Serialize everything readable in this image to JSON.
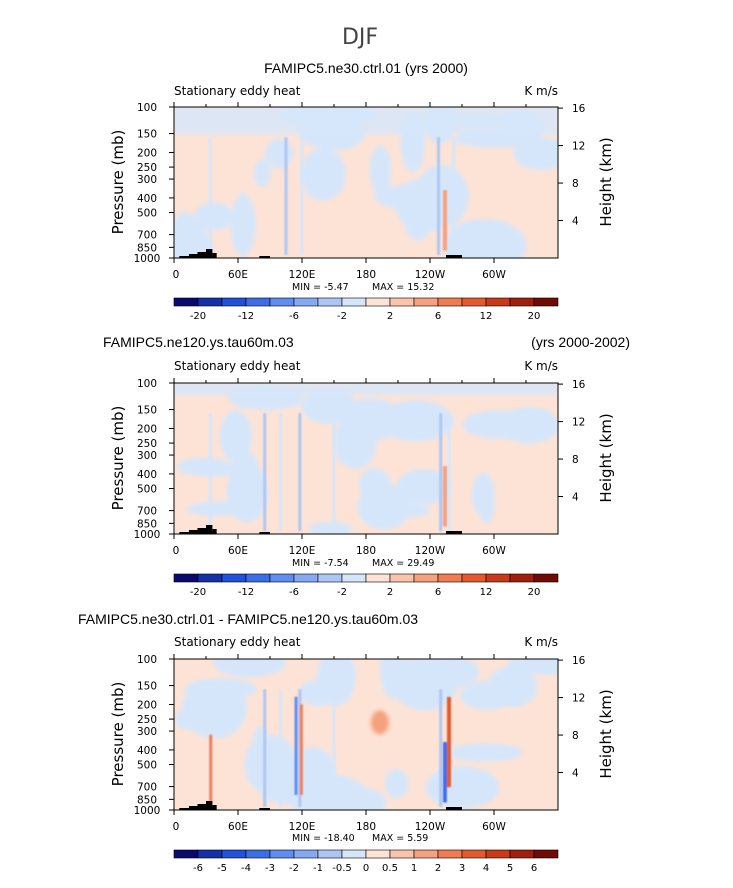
{
  "figure": {
    "title": "DJF"
  },
  "chart_data": [
    {
      "type": "heatmap",
      "title": "FAMIPC5.ne30.ctrl.01 (yrs 2000)",
      "title_right": "",
      "left_label": "Stationary eddy heat",
      "units": "K m/s",
      "xlabel": "",
      "ylabel": "Pressure (mb)",
      "ylabel_right": "Height (km)",
      "x_ticks": [
        "0",
        "60E",
        "120E",
        "180",
        "120W",
        "60W"
      ],
      "x_tick_values": [
        0,
        60,
        120,
        180,
        240,
        300
      ],
      "xlim": [
        0,
        360
      ],
      "y_ticks": [
        "100",
        "150",
        "200",
        "250",
        "300",
        "400",
        "500",
        "700",
        "850",
        "1000"
      ],
      "y_tick_values": [
        100,
        150,
        200,
        250,
        300,
        400,
        500,
        700,
        850,
        1000
      ],
      "ylim": [
        1000,
        100
      ],
      "y_scale": "log",
      "y_right_ticks": [
        "4",
        "8",
        "12",
        "16"
      ],
      "y_right_values": [
        4,
        8,
        12,
        16
      ],
      "min_label": "MIN =  -5.47",
      "max_label": "MAX =  15.32",
      "min": -5.47,
      "max": 15.32,
      "colorbar": {
        "levels": [
          -20,
          -16,
          -12,
          -8,
          -6,
          -4,
          -2,
          0,
          2,
          4,
          6,
          8,
          12,
          16,
          20
        ],
        "labels": [
          "-20",
          "-12",
          "-6",
          "-2",
          "2",
          "6",
          "12",
          "20"
        ],
        "label_values": [
          -20,
          -12,
          -6,
          -2,
          2,
          6,
          12,
          20
        ],
        "colors": [
          "#0a0a6e",
          "#1530a8",
          "#2250d8",
          "#3c6ee8",
          "#5f8df0",
          "#86aaf2",
          "#aec6f4",
          "#d6e6fa",
          "#fde3d6",
          "#f9c4ac",
          "#f5a07e",
          "#f07c52",
          "#e45a2e",
          "#c83a18",
          "#a01e0c",
          "#700a04"
        ]
      }
    },
    {
      "type": "heatmap",
      "title": "FAMIPC5.ne120.ys.tau60m.03",
      "title_right": "(yrs 2000-2002)",
      "left_label": "Stationary eddy heat",
      "units": "K m/s",
      "xlabel": "",
      "ylabel": "Pressure (mb)",
      "ylabel_right": "Height (km)",
      "x_ticks": [
        "0",
        "60E",
        "120E",
        "180",
        "120W",
        "60W"
      ],
      "x_tick_values": [
        0,
        60,
        120,
        180,
        240,
        300
      ],
      "xlim": [
        0,
        360
      ],
      "y_ticks": [
        "100",
        "150",
        "200",
        "250",
        "300",
        "400",
        "500",
        "700",
        "850",
        "1000"
      ],
      "y_tick_values": [
        100,
        150,
        200,
        250,
        300,
        400,
        500,
        700,
        850,
        1000
      ],
      "ylim": [
        1000,
        100
      ],
      "y_scale": "log",
      "y_right_ticks": [
        "4",
        "8",
        "12",
        "16"
      ],
      "y_right_values": [
        4,
        8,
        12,
        16
      ],
      "min_label": "MIN =  -7.54",
      "max_label": "MAX =  29.49",
      "min": -7.54,
      "max": 29.49,
      "colorbar": {
        "levels": [
          -20,
          -16,
          -12,
          -8,
          -6,
          -4,
          -2,
          0,
          2,
          4,
          6,
          8,
          12,
          16,
          20
        ],
        "labels": [
          "-20",
          "-12",
          "-6",
          "-2",
          "2",
          "6",
          "12",
          "20"
        ],
        "label_values": [
          -20,
          -12,
          -6,
          -2,
          2,
          6,
          12,
          20
        ],
        "colors": [
          "#0a0a6e",
          "#1530a8",
          "#2250d8",
          "#3c6ee8",
          "#5f8df0",
          "#86aaf2",
          "#aec6f4",
          "#d6e6fa",
          "#fde3d6",
          "#f9c4ac",
          "#f5a07e",
          "#f07c52",
          "#e45a2e",
          "#c83a18",
          "#a01e0c",
          "#700a04"
        ]
      }
    },
    {
      "type": "heatmap",
      "title": "FAMIPC5.ne30.ctrl.01 - FAMIPC5.ne120.ys.tau60m.03",
      "title_right": "",
      "left_label": "Stationary eddy heat",
      "units": "K m/s",
      "xlabel": "",
      "ylabel": "Pressure (mb)",
      "ylabel_right": "Height (km)",
      "x_ticks": [
        "0",
        "60E",
        "120E",
        "180",
        "120W",
        "60W"
      ],
      "x_tick_values": [
        0,
        60,
        120,
        180,
        240,
        300
      ],
      "xlim": [
        0,
        360
      ],
      "y_ticks": [
        "100",
        "150",
        "200",
        "250",
        "300",
        "400",
        "500",
        "700",
        "850",
        "1000"
      ],
      "y_tick_values": [
        100,
        150,
        200,
        250,
        300,
        400,
        500,
        700,
        850,
        1000
      ],
      "ylim": [
        1000,
        100
      ],
      "y_scale": "log",
      "y_right_ticks": [
        "4",
        "8",
        "12",
        "16"
      ],
      "y_right_values": [
        4,
        8,
        12,
        16
      ],
      "min_label": "MIN =  -18.40",
      "max_label": "MAX =   5.59",
      "min": -18.4,
      "max": 5.59,
      "colorbar": {
        "levels": [
          -6,
          -5,
          -4,
          -3,
          -2,
          -1,
          -0.5,
          0,
          0.5,
          1,
          2,
          3,
          4,
          5,
          6
        ],
        "labels": [
          "-6",
          "-5",
          "-4",
          "-3",
          "-2",
          "-1",
          "-0.5",
          "0",
          "0.5",
          "1",
          "2",
          "3",
          "4",
          "5",
          "6"
        ],
        "label_values": [
          -6,
          -5,
          -4,
          -3,
          -2,
          -1,
          -0.5,
          0,
          0.5,
          1,
          2,
          3,
          4,
          5,
          6
        ],
        "colors": [
          "#0a0a6e",
          "#1530a8",
          "#2250d8",
          "#3c6ee8",
          "#5f8df0",
          "#86aaf2",
          "#aec6f4",
          "#d6e6fa",
          "#fde3d6",
          "#f9c4ac",
          "#f5a07e",
          "#f07c52",
          "#e45a2e",
          "#c83a18",
          "#a01e0c",
          "#700a04"
        ]
      }
    }
  ]
}
